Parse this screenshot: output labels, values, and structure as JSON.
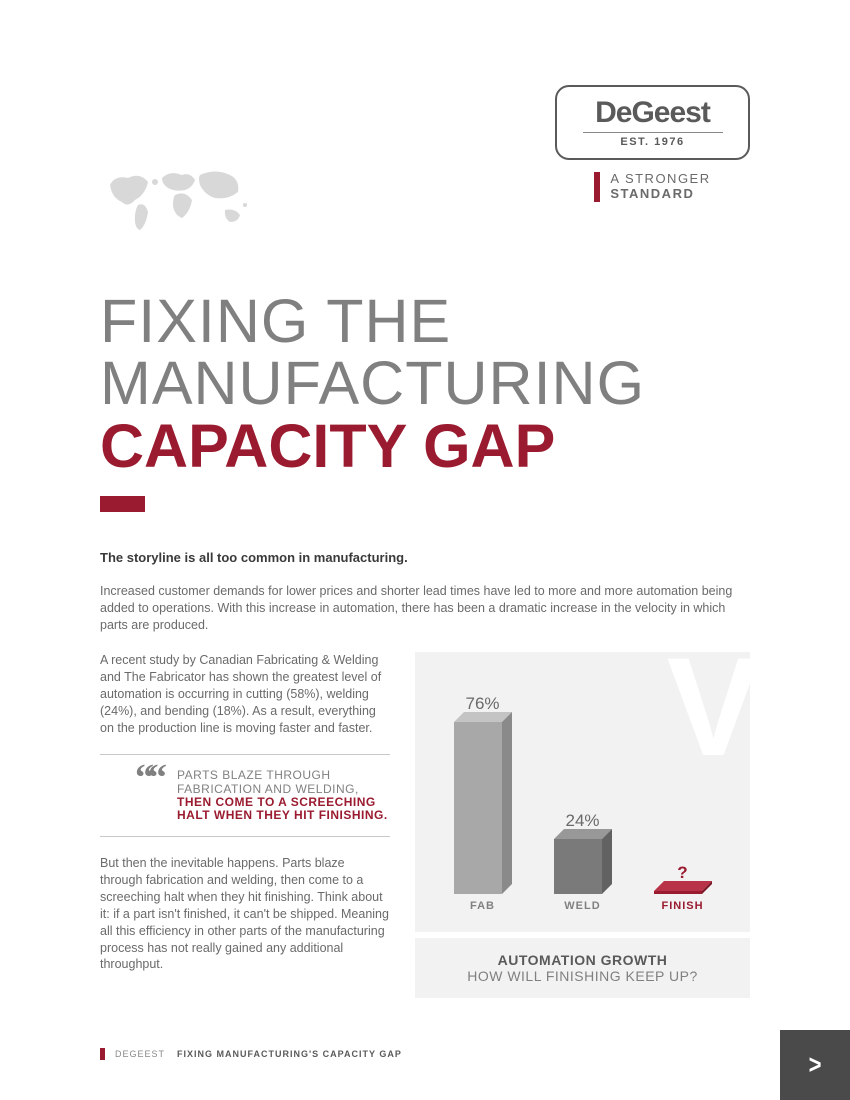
{
  "logo": {
    "name": "DeGeest",
    "est": "EST. 1976",
    "tagline_light": "A STRONGER",
    "tagline_bold": "STANDARD"
  },
  "title": {
    "line1a": "FIXING THE",
    "line1b": "MANUFACTURING",
    "line2": "CAPACITY GAP"
  },
  "body": {
    "intro_bold": "The storyline is all too common in manufacturing.",
    "para1": "Increased customer demands for lower prices and shorter lead times have led to more and more automation being added to operations. With this increase in automation, there has been a dramatic increase in the velocity in which parts are produced.",
    "para2": "A recent study by Canadian Fabricating & Welding and The Fabricator has shown the greatest level of automation is occurring in cutting (58%), welding (24%), and bending (18%). As a result, everything on the production line is moving faster and faster.",
    "quote_plain": "PARTS BLAZE THROUGH FABRICATION AND WELDING, ",
    "quote_emph": "THEN COME TO A SCREECHING HALT WHEN THEY HIT FINISHING.",
    "para3": "But then the inevitable happens. Parts blaze through fabrication and welding, then come to a screeching halt when they hit finishing. Think about it: if a part isn't finished, it can't be shipped. Meaning all this efficiency in other parts of the manufacturing process has not really gained any additional throughput."
  },
  "chart": {
    "type": "bar",
    "background_color": "#f2f2f2",
    "decor_letter": "V",
    "decor_color": "#ffffff",
    "bars": [
      {
        "label": "FAB",
        "value_label": "76%",
        "height": 172,
        "color_front": "#a8a8a8",
        "color_top": "#c4c4c4",
        "color_side": "#8a8a8a",
        "label_color": "#808080"
      },
      {
        "label": "WELD",
        "value_label": "24%",
        "height": 55,
        "color_front": "#7a7a7a",
        "color_top": "#989898",
        "color_side": "#626262",
        "label_color": "#808080"
      },
      {
        "label": "FINISH",
        "value_label": "?",
        "height": 3,
        "color_front": "#9a1b2f",
        "color_top": "#b83348",
        "color_side": "#7a1525",
        "label_color": "#9a1b2f",
        "value_red": true
      }
    ],
    "caption_line1": "AUTOMATION GROWTH",
    "caption_line2": "HOW WILL FINISHING KEEP UP?"
  },
  "footer": {
    "brand": "DEGEEST",
    "title": "FIXING MANUFACTURING'S CAPACITY GAP",
    "arrow": ">"
  },
  "colors": {
    "accent": "#9a1b2f",
    "gray_text": "#6a6a6a",
    "gray_light": "#808080",
    "gray_dark": "#5a5a5a"
  }
}
